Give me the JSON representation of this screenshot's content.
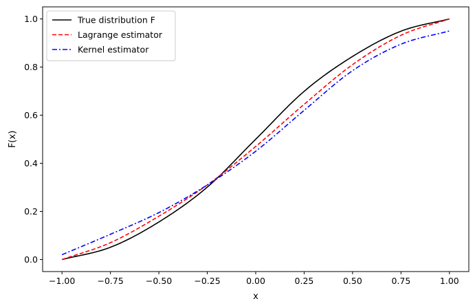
{
  "chart_data": {
    "type": "line",
    "title": "",
    "xlabel": "x",
    "ylabel": "F(x)",
    "xlim": [
      -1.1,
      1.1
    ],
    "ylim": [
      -0.05,
      1.05
    ],
    "xticks": [
      -1.0,
      -0.75,
      -0.5,
      -0.25,
      0.0,
      0.25,
      0.5,
      0.75,
      1.0
    ],
    "xtick_labels": [
      "−1.00",
      "−0.75",
      "−0.50",
      "−0.25",
      "0.00",
      "0.25",
      "0.50",
      "0.75",
      "1.00"
    ],
    "yticks": [
      0.0,
      0.2,
      0.4,
      0.6,
      0.8,
      1.0
    ],
    "ytick_labels": [
      "0.0",
      "0.2",
      "0.4",
      "0.6",
      "0.8",
      "1.0"
    ],
    "grid": false,
    "legend_position": "top-left",
    "x": [
      -1.0,
      -0.75,
      -0.5,
      -0.25,
      0.0,
      0.25,
      0.5,
      0.75,
      1.0
    ],
    "series": [
      {
        "name": "True distribution F",
        "color": "#000000",
        "style": "solid",
        "values": [
          0.0,
          0.051,
          0.156,
          0.301,
          0.5,
          0.699,
          0.844,
          0.949,
          1.0
        ]
      },
      {
        "name": "Lagrange estimator",
        "color": "#ff0000",
        "style": "dashed",
        "values": [
          0.0,
          0.07,
          0.18,
          0.31,
          0.47,
          0.645,
          0.81,
          0.932,
          1.0
        ]
      },
      {
        "name": "Kernel estimator",
        "color": "#0000ff",
        "style": "dashdot",
        "values": [
          0.02,
          0.105,
          0.195,
          0.31,
          0.45,
          0.62,
          0.785,
          0.895,
          0.95
        ]
      }
    ]
  }
}
